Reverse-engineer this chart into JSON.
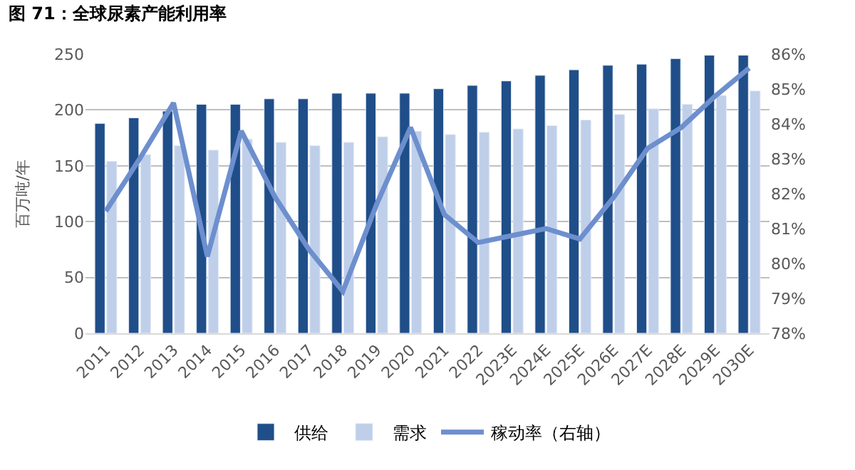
{
  "chart_data": {
    "type": "bar",
    "title": "图 71：全球尿素产能利用率",
    "ylabel": "百万吨/年",
    "categories": [
      "2011",
      "2012",
      "2013",
      "2014",
      "2015",
      "2016",
      "2017",
      "2018",
      "2019",
      "2020",
      "2021",
      "2022",
      "2023E",
      "2024E",
      "2025E",
      "2026E",
      "2027E",
      "2028E",
      "2029E",
      "2030E"
    ],
    "series": [
      {
        "name": "供给",
        "color": "#1f4e89",
        "values": [
          188,
          193,
          199,
          205,
          205,
          210,
          210,
          215,
          215,
          215,
          219,
          222,
          226,
          231,
          236,
          240,
          241,
          246,
          249,
          249
        ]
      },
      {
        "name": "需求",
        "color": "#bfcfea",
        "values": [
          154,
          160,
          168,
          164,
          174,
          171,
          168,
          171,
          176,
          181,
          178,
          180,
          183,
          186,
          191,
          196,
          201,
          205,
          213,
          217
        ]
      },
      {
        "name": "稼动率（右轴）",
        "type": "line",
        "axis": "y2",
        "color": "#6d8fce",
        "values": [
          81.5,
          83.0,
          84.6,
          80.2,
          83.8,
          81.9,
          80.4,
          79.2,
          81.7,
          83.9,
          81.4,
          80.6,
          80.8,
          81.0,
          80.7,
          81.9,
          83.3,
          83.9,
          84.8,
          85.6
        ]
      }
    ],
    "ylim": [
      0,
      250
    ],
    "yticks": [
      0,
      50,
      100,
      150,
      200,
      250
    ],
    "y2lim": [
      78,
      86
    ],
    "y2ticks": [
      {
        "value": 78,
        "label": "78%"
      },
      {
        "value": 79,
        "label": "79%"
      },
      {
        "value": 80,
        "label": "80%"
      },
      {
        "value": 81,
        "label": "81%"
      },
      {
        "value": 82,
        "label": "82%"
      },
      {
        "value": 83,
        "label": "83%"
      },
      {
        "value": 84,
        "label": "84%"
      },
      {
        "value": 85,
        "label": "85%"
      },
      {
        "value": 86,
        "label": "86%"
      }
    ],
    "grid": "y",
    "legend": "bottom",
    "marker": "none",
    "line_style": "solid"
  }
}
